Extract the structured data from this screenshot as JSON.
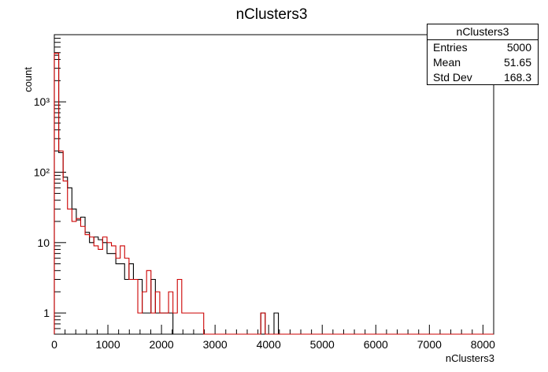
{
  "chart_data": {
    "type": "histogram",
    "title": "nClusters3",
    "xlabel": "nClusters3",
    "ylabel": "count",
    "xlim": [
      0,
      8200
    ],
    "ylim": [
      0.5,
      9000
    ],
    "yscale": "log",
    "grid": false,
    "bin_width": 82,
    "x_ticks": [
      0,
      1000,
      2000,
      3000,
      4000,
      5000,
      6000,
      7000,
      8000
    ],
    "x_tick_labels": [
      "0",
      "1000",
      "2000",
      "3000",
      "4000",
      "5000",
      "6000",
      "7000",
      "8000"
    ],
    "y_ticks": [
      1,
      10,
      100,
      1000
    ],
    "y_tick_labels": [
      "1",
      "10",
      "10²",
      "10³"
    ],
    "series": [
      {
        "color": "#000000",
        "bins": [
          [
            0,
            4600
          ],
          [
            82,
            190
          ],
          [
            164,
            85
          ],
          [
            246,
            60
          ],
          [
            328,
            30
          ],
          [
            410,
            21
          ],
          [
            492,
            23
          ],
          [
            574,
            14
          ],
          [
            656,
            10
          ],
          [
            738,
            12
          ],
          [
            820,
            11
          ],
          [
            902,
            10
          ],
          [
            984,
            7
          ],
          [
            1066,
            7
          ],
          [
            1148,
            5
          ],
          [
            1230,
            5
          ],
          [
            1312,
            3
          ],
          [
            1394,
            5
          ],
          [
            1476,
            3
          ],
          [
            1558,
            3
          ],
          [
            1640,
            1
          ],
          [
            1722,
            1
          ],
          [
            1804,
            3
          ],
          [
            1886,
            1
          ],
          [
            1968,
            1
          ],
          [
            2050,
            1
          ],
          [
            2132,
            1
          ],
          [
            3854,
            1
          ],
          [
            4100,
            1
          ]
        ]
      },
      {
        "color": "#cc0000",
        "bins": [
          [
            0,
            4900
          ],
          [
            82,
            200
          ],
          [
            164,
            75
          ],
          [
            246,
            30
          ],
          [
            328,
            20
          ],
          [
            410,
            22
          ],
          [
            492,
            17
          ],
          [
            574,
            13
          ],
          [
            656,
            12
          ],
          [
            738,
            9
          ],
          [
            820,
            8
          ],
          [
            902,
            12
          ],
          [
            984,
            10
          ],
          [
            1066,
            9
          ],
          [
            1148,
            6
          ],
          [
            1230,
            9
          ],
          [
            1312,
            6
          ],
          [
            1394,
            3
          ],
          [
            1476,
            3
          ],
          [
            1558,
            1
          ],
          [
            1640,
            2
          ],
          [
            1722,
            4
          ],
          [
            1804,
            1
          ],
          [
            1886,
            2
          ],
          [
            1968,
            1
          ],
          [
            2050,
            1
          ],
          [
            2132,
            2
          ],
          [
            2214,
            1
          ],
          [
            2296,
            3
          ],
          [
            2378,
            1
          ],
          [
            2460,
            1
          ],
          [
            2542,
            1
          ],
          [
            2624,
            1
          ],
          [
            2706,
            1
          ],
          [
            3854,
            1
          ]
        ]
      }
    ],
    "legend": {
      "position": "top-right",
      "title": "nClusters3",
      "rows": [
        {
          "label": "Entries",
          "value": "5000"
        },
        {
          "label": "Mean",
          "value": "51.65"
        },
        {
          "label": "Std Dev",
          "value": "168.3"
        }
      ]
    }
  }
}
